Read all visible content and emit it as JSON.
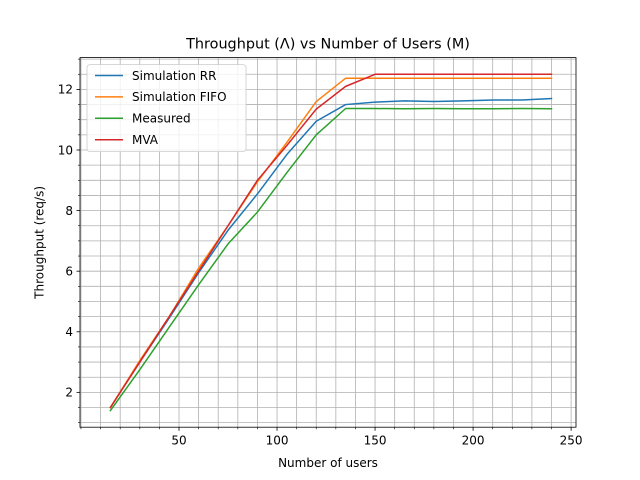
{
  "chart_data": {
    "type": "line",
    "title": "Throughput (Λ) vs Number of Users (M)",
    "xlabel": "Number of users",
    "ylabel": "Throughput (req/s)",
    "xlim": [
      -0.5,
      252.5
    ],
    "ylim": [
      0.85,
      13.05
    ],
    "xticks": [
      50,
      100,
      150,
      200,
      250
    ],
    "yticks": [
      2,
      4,
      6,
      8,
      10,
      12
    ],
    "xminor_step": 10,
    "yminor_step": 0.5,
    "grid": "major and minor",
    "legend_position": "upper-left",
    "x": [
      15,
      30,
      45,
      60,
      75,
      90,
      105,
      120,
      135,
      150,
      165,
      180,
      195,
      210,
      225,
      240
    ],
    "series": [
      {
        "name": "Simulation RR",
        "color": "#1f77b4",
        "values": [
          1.5,
          3.0,
          4.45,
          5.95,
          7.35,
          8.55,
          9.85,
          10.95,
          11.5,
          11.58,
          11.62,
          11.6,
          11.62,
          11.65,
          11.65,
          11.7
        ]
      },
      {
        "name": "Simulation FIFO",
        "color": "#ff7f0e",
        "values": [
          1.5,
          3.05,
          4.5,
          6.1,
          7.5,
          8.95,
          10.25,
          11.6,
          12.37,
          12.37,
          12.37,
          12.37,
          12.37,
          12.37,
          12.37,
          12.37
        ]
      },
      {
        "name": "Measured",
        "color": "#2ca02c",
        "values": [
          1.4,
          2.75,
          4.15,
          5.55,
          6.9,
          7.95,
          9.25,
          10.5,
          11.37,
          11.37,
          11.36,
          11.37,
          11.36,
          11.36,
          11.37,
          11.36
        ]
      },
      {
        "name": "MVA",
        "color": "#d62728",
        "values": [
          1.5,
          3.0,
          4.5,
          6.0,
          7.5,
          9.0,
          10.15,
          11.35,
          12.1,
          12.5,
          12.5,
          12.5,
          12.5,
          12.5,
          12.5,
          12.5
        ]
      }
    ]
  }
}
